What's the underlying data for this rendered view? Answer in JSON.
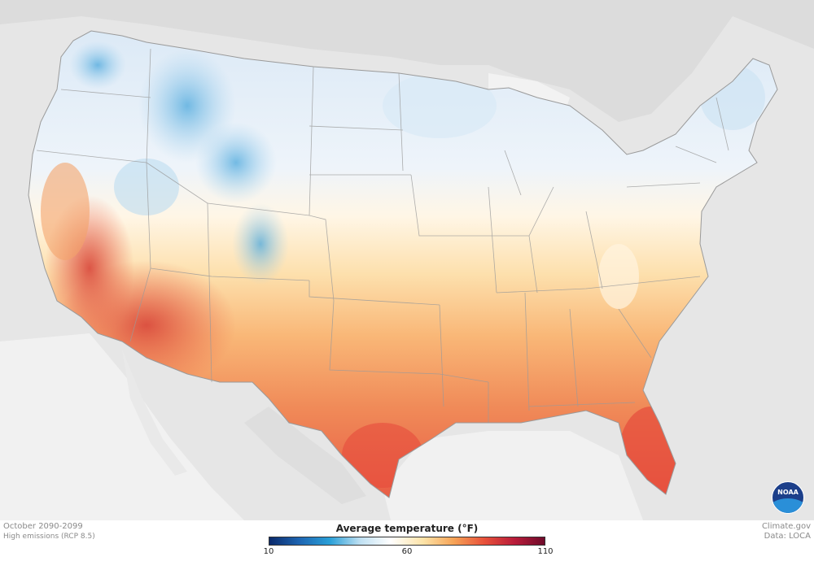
{
  "caption": {
    "period": "October 2090-2099",
    "scenario": "High emissions (RCP 8.5)"
  },
  "credits": {
    "site": "Climate.gov",
    "data_source": "Data: LOCA"
  },
  "legend": {
    "title": "Average temperature (°F)",
    "min_label": "10",
    "mid_label": "60",
    "max_label": "110",
    "colors": [
      "#0b2a6b",
      "#1e66b3",
      "#2aa0d8",
      "#bfe0f2",
      "#ffffff",
      "#fde3a7",
      "#f6a356",
      "#e8513a",
      "#b91c3a",
      "#6e0a2a"
    ]
  },
  "logo": {
    "text": "NOAA",
    "icon": "noaa-logo"
  }
}
